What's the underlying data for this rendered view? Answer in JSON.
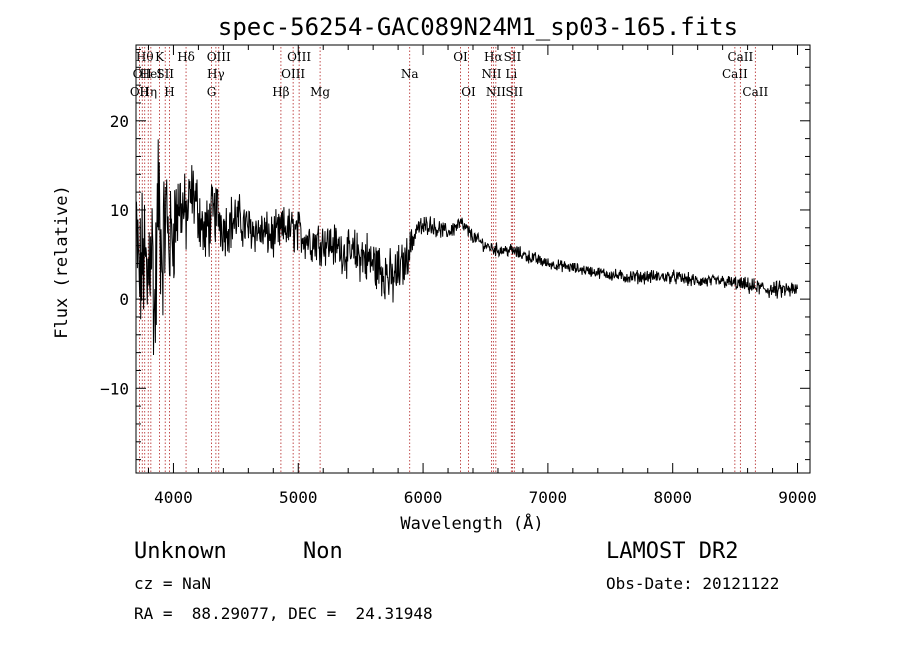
{
  "chart_data": {
    "type": "line",
    "title": "spec-56254-GAC089N24M1_sp03-165.fits",
    "xlabel": "Wavelength (Å)",
    "ylabel": "Flux (relative)",
    "xlim": [
      3700,
      9100
    ],
    "ylim": [
      -19.5,
      28.5
    ],
    "x_ticks": [
      4000,
      5000,
      6000,
      7000,
      8000,
      9000
    ],
    "y_ticks": [
      -10,
      0,
      10,
      20
    ],
    "x_tick_labels": [
      "4000",
      "5000",
      "6000",
      "7000",
      "8000",
      "9000"
    ],
    "y_tick_labels": [
      "−10",
      "0",
      "10",
      "20"
    ],
    "series": [
      {
        "x": [
          3700,
          3730,
          3760,
          3790,
          3820,
          3850,
          3880,
          3910,
          3940,
          3970,
          4000,
          4050,
          4100,
          4150,
          4200,
          4250,
          4300,
          4350,
          4400,
          4500,
          4600,
          4700,
          4800,
          4900,
          5000,
          5100,
          5200,
          5300,
          5400,
          5500,
          5600,
          5700,
          5750,
          5800,
          5850,
          5900,
          5950,
          6000,
          6050,
          6100,
          6200,
          6300,
          6400,
          6500,
          6600,
          6700,
          6800,
          6900,
          7000,
          7200,
          7400,
          7600,
          7800,
          8000,
          8200,
          8400,
          8600,
          8800,
          9000
        ],
        "y": [
          7,
          2,
          5,
          1,
          9,
          -3,
          12,
          4,
          10,
          6,
          8,
          11,
          9,
          12,
          10,
          7,
          9,
          10,
          8,
          9,
          8,
          7.5,
          7,
          8,
          7.5,
          6.5,
          6.5,
          6,
          5,
          5,
          4,
          3,
          2,
          3,
          4,
          6,
          8,
          8,
          8.5,
          8,
          7.5,
          8.5,
          7,
          6,
          5.5,
          5.5,
          5,
          4.5,
          4,
          3.5,
          3,
          2.5,
          2.5,
          2.5,
          2,
          2,
          1.5,
          1,
          1
        ],
        "noise": [
          6,
          6,
          7,
          8,
          8,
          8,
          7,
          6,
          6,
          5,
          5,
          4,
          3.5,
          3,
          3,
          3,
          3,
          3,
          2.5,
          2.5,
          2,
          2,
          2,
          2,
          2,
          2,
          2,
          2,
          2,
          2.5,
          2.5,
          2.5,
          2.5,
          2.5,
          2,
          1.5,
          1,
          1,
          0.8,
          0.8,
          0.7,
          0.8,
          0.6,
          0.6,
          0.6,
          0.6,
          0.6,
          0.6,
          0.5,
          0.5,
          0.5,
          0.6,
          0.6,
          0.6,
          0.6,
          0.6,
          0.7,
          0.8,
          0.8
        ]
      }
    ],
    "lines": [
      {
        "x": 3728,
        "label": "OII",
        "row": 3
      },
      {
        "x": 3750,
        "label": "OII",
        "row": 2
      },
      {
        "x": 3770,
        "label": "Hθ",
        "row": 1
      },
      {
        "x": 3798,
        "label": "Hη",
        "row": 3
      },
      {
        "x": 3819,
        "label": "HeI",
        "row": 2
      },
      {
        "x": 3889,
        "label": "K",
        "row": 1
      },
      {
        "x": 3934,
        "label": "SII",
        "row": 2
      },
      {
        "x": 3968,
        "label": "H",
        "row": 3
      },
      {
        "x": 4101,
        "label": "Hδ",
        "row": 1
      },
      {
        "x": 4305,
        "label": "G",
        "row": 3
      },
      {
        "x": 4340,
        "label": "Hγ",
        "row": 2
      },
      {
        "x": 4363,
        "label": "OIII",
        "row": 1
      },
      {
        "x": 4861,
        "label": "Hβ",
        "row": 3
      },
      {
        "x": 4959,
        "label": "OIII",
        "row": 2
      },
      {
        "x": 5007,
        "label": "OIII",
        "row": 1
      },
      {
        "x": 5175,
        "label": "Mg",
        "row": 3
      },
      {
        "x": 5893,
        "label": "Na",
        "row": 2
      },
      {
        "x": 6300,
        "label": "OI",
        "row": 1
      },
      {
        "x": 6364,
        "label": "OI",
        "row": 3
      },
      {
        "x": 6548,
        "label": "NII",
        "row": 2
      },
      {
        "x": 6563,
        "label": "Hα",
        "row": 1
      },
      {
        "x": 6583,
        "label": "NII",
        "row": 3
      },
      {
        "x": 6707,
        "label": "Li",
        "row": 2
      },
      {
        "x": 6716,
        "label": "SII",
        "row": 1
      },
      {
        "x": 6731,
        "label": "SII",
        "row": 3
      },
      {
        "x": 8498,
        "label": "CaII",
        "row": 2
      },
      {
        "x": 8542,
        "label": "CaII",
        "row": 1
      },
      {
        "x": 8662,
        "label": "CaII",
        "row": 3
      }
    ],
    "colors": {
      "spectrum": "#000000",
      "lines": "#b22222"
    }
  },
  "footer": {
    "class_label": "Unknown",
    "subclass_label": "Non",
    "survey": "LAMOST DR2",
    "cz": "cz = NaN",
    "obs_date": "Obs-Date: 20121122",
    "coords": "RA =  88.29077, DEC =  24.31948"
  }
}
